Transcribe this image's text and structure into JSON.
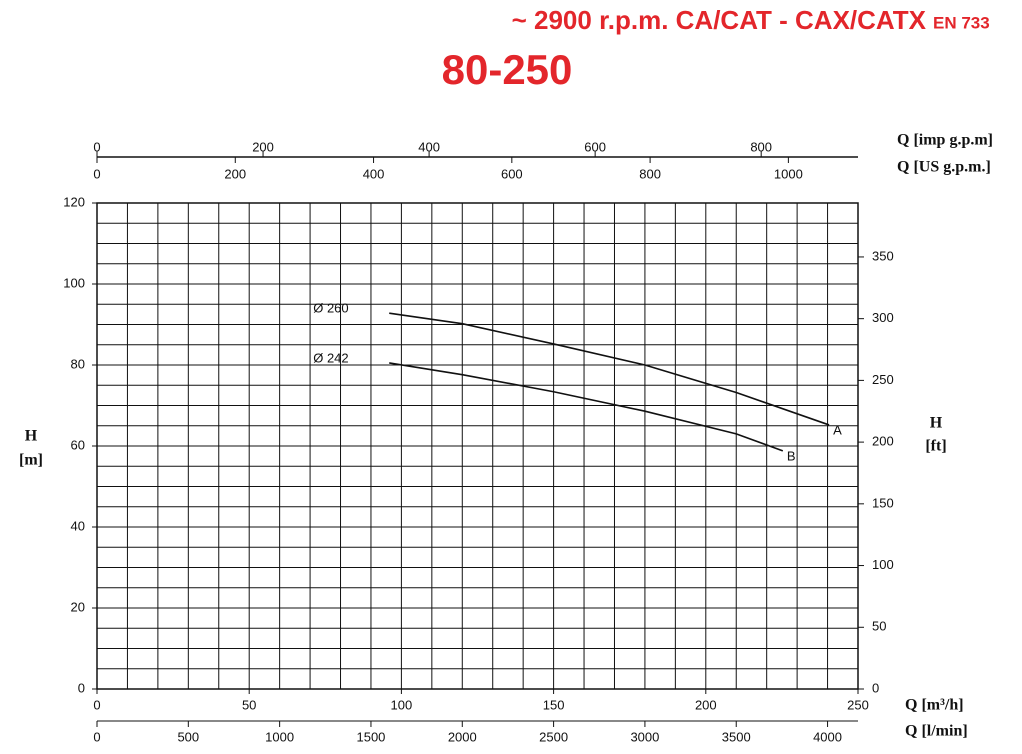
{
  "chart_data": {
    "type": "line",
    "title": "~ 2900 r.p.m. CA/CAT - CAX/CATX",
    "title_suffix": "EN 733",
    "subtitle": "80-250",
    "title_color": "#e3262b",
    "xlabel": "Q [m³/h]",
    "xlim": [
      0,
      250
    ],
    "xticks": [
      0,
      50,
      100,
      150,
      200,
      250
    ],
    "xgrid": [
      0,
      10,
      20,
      30,
      40,
      50,
      60,
      70,
      80,
      90,
      100,
      110,
      120,
      130,
      140,
      150,
      160,
      170,
      180,
      190,
      200,
      210,
      220,
      230,
      240,
      250
    ],
    "x_lmin_label": "Q [l/min]",
    "x_lmin_lim": [
      0,
      4166.7
    ],
    "x_lmin_ticks": [
      0,
      500,
      1000,
      1500,
      2000,
      2500,
      3000,
      3500,
      4000
    ],
    "x_usgpm_label": "Q [US g.p.m.]",
    "x_usgpm_lim": [
      0,
      1100.7
    ],
    "x_usgpm_ticks": [
      0,
      200,
      400,
      600,
      800,
      1000
    ],
    "x_impgpm_label": "Q [imp g.p.m]",
    "x_impgpm_lim": [
      0,
      916.6
    ],
    "x_impgpm_ticks": [
      0,
      200,
      400,
      600,
      800
    ],
    "ylabel": [
      "H",
      "[m]"
    ],
    "ylim": [
      0,
      120
    ],
    "yticks": [
      0,
      20,
      40,
      60,
      80,
      100,
      120
    ],
    "ygrid": [
      0,
      5,
      10,
      15,
      20,
      25,
      30,
      35,
      40,
      45,
      50,
      55,
      60,
      65,
      70,
      75,
      80,
      85,
      90,
      95,
      100,
      105,
      110,
      115,
      120
    ],
    "y2label": [
      "H",
      "[ft]"
    ],
    "y2lim": [
      0,
      393.7
    ],
    "y2ticks": [
      0,
      50,
      100,
      150,
      200,
      250,
      300,
      350
    ],
    "grid": true,
    "series": [
      {
        "name": "Ø 260",
        "label": "A",
        "color": "#111111",
        "x": [
          96,
          120,
          150,
          180,
          210,
          240.5
        ],
        "values": [
          92.8,
          90.2,
          85.2,
          80.0,
          73.2,
          65.2
        ]
      },
      {
        "name": "Ø 242",
        "label": "B",
        "color": "#111111",
        "x": [
          96,
          120,
          150,
          180,
          210,
          225.3
        ],
        "values": [
          80.5,
          77.6,
          73.4,
          68.6,
          63.0,
          58.8
        ]
      }
    ]
  }
}
